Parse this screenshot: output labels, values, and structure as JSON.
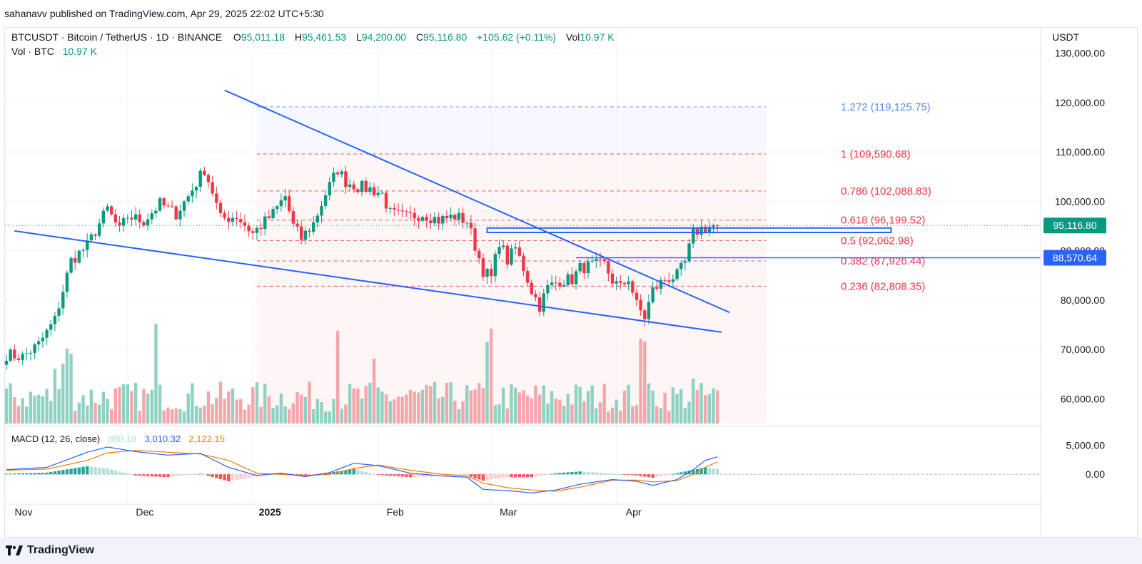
{
  "header": {
    "publish_text": "sahanavv published on TradingView.com, Apr 29, 2025 22:02 UTC+5:30"
  },
  "legend": {
    "symbol": "BTCUSDT · Bitcoin / TetherUS · 1D · BINANCE",
    "open_label": "O",
    "open": "95,011.18",
    "high_label": "H",
    "high": "95,461.53",
    "low_label": "L",
    "low": "94,200.00",
    "close_label": "C",
    "close": "95,116.80",
    "change": "+105.62 (+0.11%)",
    "vol_label": "Vol",
    "vol": "10.97 K",
    "vol_row_label": "Vol · BTC",
    "vol_row_value": "10.97 K"
  },
  "macd_legend": {
    "label": "MACD (12, 26, close)",
    "hist": "888.18",
    "macd": "3,010.32",
    "signal": "2,122.15"
  },
  "footer": {
    "brand": "TradingView"
  },
  "colors": {
    "up": "#089981",
    "down": "#f23645",
    "vol_up": "#8fd1c3",
    "vol_down": "#f6a5aa",
    "trend": "#2962ff",
    "fib": "#f23645",
    "fib_ext": "#5b8def",
    "macd": "#2962ff",
    "signal": "#f57c00"
  },
  "chart_data": {
    "type": "candlestick",
    "symbol": "BTCUSDT",
    "interval": "1D",
    "currency": "USDT",
    "y_ticks": [
      "130,000.00",
      "120,000.00",
      "110,000.00",
      "100,000.00",
      "90,000.00",
      "80,000.00",
      "70,000.00",
      "60,000.00"
    ],
    "y_tick_values": [
      130000,
      120000,
      110000,
      100000,
      90000,
      80000,
      70000,
      60000
    ],
    "ylim": [
      55000,
      135000
    ],
    "x_labels": [
      {
        "label": "Nov",
        "bold": false,
        "index": 0
      },
      {
        "label": "Dec",
        "bold": false,
        "index": 30
      },
      {
        "label": "2025",
        "bold": true,
        "index": 61
      },
      {
        "label": "Feb",
        "bold": false,
        "index": 92
      },
      {
        "label": "Mar",
        "bold": false,
        "index": 120
      },
      {
        "label": "Apr",
        "bold": false,
        "index": 151
      }
    ],
    "price_badges": [
      {
        "label": "95,116.80",
        "value": 95116.8,
        "color": "#089981"
      },
      {
        "label": "88,570.64",
        "value": 88570.64,
        "color": "#2962ff"
      }
    ],
    "fib_levels": [
      {
        "label": "1.272 (119,125.75)",
        "value": 119125.75,
        "color": "#5b8def"
      },
      {
        "label": "1 (109,590.68)",
        "value": 109590.68,
        "color": "#f23645"
      },
      {
        "label": "0.786 (102,088.83)",
        "value": 102088.83,
        "color": "#f23645"
      },
      {
        "label": "0.618 (96,199.52)",
        "value": 96199.52,
        "color": "#f23645"
      },
      {
        "label": "0.5 (92,062.98)",
        "value": 92062.98,
        "color": "#f23645"
      },
      {
        "label": "0.382 (87,926.44)",
        "value": 87926.44,
        "color": "#f23645"
      },
      {
        "label": "0.236 (82,808.35)",
        "value": 82808.35,
        "color": "#f23645"
      }
    ],
    "fib_range": {
      "start_index": 62,
      "end_index": 188
    },
    "trendlines": [
      {
        "from": {
          "index": 54,
          "value": 122500
        },
        "to": {
          "index": 179,
          "value": 77500
        }
      },
      {
        "from": {
          "index": 2,
          "value": 94000
        },
        "to": {
          "index": 177,
          "value": 73500
        }
      }
    ],
    "resistance_box": {
      "start_index": 119,
      "end_index": 219,
      "top": 94600,
      "bottom": 93700
    },
    "support_line": {
      "start_index": 141,
      "value": 88570.64
    },
    "macd_ticks": [
      "5,000.00",
      "0.00"
    ],
    "macd_tick_values": [
      5000,
      0
    ],
    "macd_ylim": [
      -5000,
      8000
    ],
    "anchors": [
      {
        "i": 0,
        "p": 69000
      },
      {
        "i": 4,
        "p": 68500
      },
      {
        "i": 8,
        "p": 71000
      },
      {
        "i": 12,
        "p": 76000
      },
      {
        "i": 14,
        "p": 82000
      },
      {
        "i": 16,
        "p": 88000
      },
      {
        "i": 20,
        "p": 91000
      },
      {
        "i": 25,
        "p": 98500
      },
      {
        "i": 28,
        "p": 94000
      },
      {
        "i": 30,
        "p": 97000
      },
      {
        "i": 34,
        "p": 96000
      },
      {
        "i": 38,
        "p": 99500
      },
      {
        "i": 42,
        "p": 97500
      },
      {
        "i": 45,
        "p": 101000
      },
      {
        "i": 49,
        "p": 106500
      },
      {
        "i": 51,
        "p": 102000
      },
      {
        "i": 53,
        "p": 96500
      },
      {
        "i": 57,
        "p": 97000
      },
      {
        "i": 61,
        "p": 93500
      },
      {
        "i": 66,
        "p": 97500
      },
      {
        "i": 69,
        "p": 101000
      },
      {
        "i": 71,
        "p": 95000
      },
      {
        "i": 73,
        "p": 92500
      },
      {
        "i": 76,
        "p": 95500
      },
      {
        "i": 79,
        "p": 101500
      },
      {
        "i": 82,
        "p": 106500
      },
      {
        "i": 84,
        "p": 104000
      },
      {
        "i": 87,
        "p": 103000
      },
      {
        "i": 90,
        "p": 102500
      },
      {
        "i": 93,
        "p": 101500
      },
      {
        "i": 95,
        "p": 97500
      },
      {
        "i": 99,
        "p": 96800
      },
      {
        "i": 103,
        "p": 97500
      },
      {
        "i": 107,
        "p": 96200
      },
      {
        "i": 111,
        "p": 97000
      },
      {
        "i": 114,
        "p": 96000
      },
      {
        "i": 116,
        "p": 91000
      },
      {
        "i": 118,
        "p": 86000
      },
      {
        "i": 120,
        "p": 84500
      },
      {
        "i": 122,
        "p": 92000
      },
      {
        "i": 124,
        "p": 88000
      },
      {
        "i": 126,
        "p": 90500
      },
      {
        "i": 128,
        "p": 86500
      },
      {
        "i": 130,
        "p": 82000
      },
      {
        "i": 132,
        "p": 78800
      },
      {
        "i": 134,
        "p": 82500
      },
      {
        "i": 137,
        "p": 84000
      },
      {
        "i": 140,
        "p": 84200
      },
      {
        "i": 142,
        "p": 86500
      },
      {
        "i": 145,
        "p": 87000
      },
      {
        "i": 148,
        "p": 87200
      },
      {
        "i": 150,
        "p": 84000
      },
      {
        "i": 152,
        "p": 82500
      },
      {
        "i": 154,
        "p": 84500
      },
      {
        "i": 156,
        "p": 79000
      },
      {
        "i": 158,
        "p": 76500
      },
      {
        "i": 160,
        "p": 82000
      },
      {
        "i": 163,
        "p": 84200
      },
      {
        "i": 166,
        "p": 85000
      },
      {
        "i": 168,
        "p": 87500
      },
      {
        "i": 170,
        "p": 93500
      },
      {
        "i": 172,
        "p": 94500
      },
      {
        "i": 175,
        "p": 95000
      },
      {
        "i": 176,
        "p": 95116.8
      }
    ],
    "volume_spikes": [
      {
        "i": 12,
        "v": 0.55
      },
      {
        "i": 14,
        "v": 0.6
      },
      {
        "i": 15,
        "v": 0.75
      },
      {
        "i": 16,
        "v": 0.7
      },
      {
        "i": 37,
        "v": 1.0
      },
      {
        "i": 82,
        "v": 0.93
      },
      {
        "i": 91,
        "v": 0.65
      },
      {
        "i": 119,
        "v": 0.82
      },
      {
        "i": 120,
        "v": 0.95
      },
      {
        "i": 157,
        "v": 0.85
      },
      {
        "i": 158,
        "v": 0.82
      },
      {
        "i": 170,
        "v": 0.45
      }
    ],
    "macd_points": [
      {
        "i": 0,
        "m": 800,
        "s": 700
      },
      {
        "i": 10,
        "m": 1200,
        "s": 900
      },
      {
        "i": 20,
        "m": 3800,
        "s": 2400
      },
      {
        "i": 25,
        "m": 4700,
        "s": 3700
      },
      {
        "i": 32,
        "m": 3900,
        "s": 4100
      },
      {
        "i": 40,
        "m": 3300,
        "s": 3800
      },
      {
        "i": 48,
        "m": 3600,
        "s": 3500
      },
      {
        "i": 55,
        "m": 1200,
        "s": 2400
      },
      {
        "i": 62,
        "m": -200,
        "s": 200
      },
      {
        "i": 68,
        "m": 200,
        "s": 0
      },
      {
        "i": 74,
        "m": -400,
        "s": -200
      },
      {
        "i": 80,
        "m": 300,
        "s": 0
      },
      {
        "i": 86,
        "m": 1900,
        "s": 1000
      },
      {
        "i": 92,
        "m": 1500,
        "s": 1600
      },
      {
        "i": 100,
        "m": 200,
        "s": 700
      },
      {
        "i": 108,
        "m": -300,
        "s": 0
      },
      {
        "i": 114,
        "m": -500,
        "s": -300
      },
      {
        "i": 118,
        "m": -2600,
        "s": -1500
      },
      {
        "i": 124,
        "m": -2800,
        "s": -2300
      },
      {
        "i": 130,
        "m": -3200,
        "s": -2700
      },
      {
        "i": 136,
        "m": -2700,
        "s": -2900
      },
      {
        "i": 142,
        "m": -1700,
        "s": -2200
      },
      {
        "i": 150,
        "m": -900,
        "s": -1000
      },
      {
        "i": 156,
        "m": -1200,
        "s": -1000
      },
      {
        "i": 160,
        "m": -1900,
        "s": -1300
      },
      {
        "i": 166,
        "m": -900,
        "s": -1100
      },
      {
        "i": 170,
        "m": 800,
        "s": 0
      },
      {
        "i": 173,
        "m": 2400,
        "s": 1200
      },
      {
        "i": 176,
        "m": 3010.32,
        "s": 2122.15
      }
    ]
  }
}
